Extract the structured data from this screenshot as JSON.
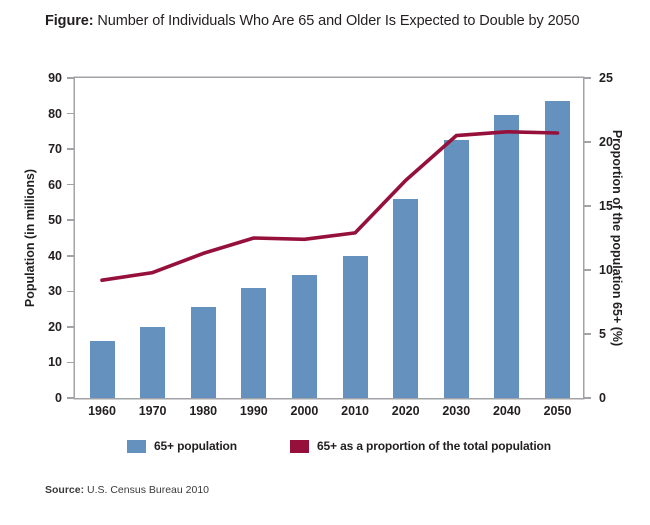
{
  "title": {
    "prefix": "Figure:",
    "text": "Number of Individuals Who Are 65 and Older Is Expected to Double by 2050"
  },
  "source": {
    "prefix": "Source:",
    "text": "U.S. Census Bureau 2010"
  },
  "colors": {
    "bar": "#6591bf",
    "line": "#96103c",
    "axis": "#a1a3a6",
    "text": "#231f20"
  },
  "chart_data": {
    "type": "bar+line",
    "title": "Number of Individuals Who Are 65 and Older Is Expected to Double by 2050",
    "categories": [
      "1960",
      "1970",
      "1980",
      "1990",
      "2000",
      "2010",
      "2020",
      "2030",
      "2040",
      "2050"
    ],
    "series": [
      {
        "name": "65+ population",
        "type": "bar",
        "axis": "left",
        "color": "#6591bf",
        "values": [
          16,
          20,
          25.5,
          31,
          34.5,
          40,
          56,
          72.5,
          79.5,
          83.5
        ]
      },
      {
        "name": "65+ as a proportion of the total population",
        "type": "line",
        "axis": "right",
        "color": "#96103c",
        "values": [
          9.2,
          9.8,
          11.3,
          12.5,
          12.4,
          12.9,
          17,
          20.5,
          20.8,
          20.7
        ]
      }
    ],
    "left_axis": {
      "label": "Population (in millions)",
      "min": 0,
      "max": 90,
      "ticks": [
        0,
        10,
        20,
        30,
        40,
        50,
        60,
        70,
        80,
        90
      ]
    },
    "right_axis": {
      "label": "Proportion of the population 65+ (%)",
      "min": 0,
      "max": 25,
      "ticks": [
        0,
        5,
        10,
        15,
        20,
        25
      ]
    },
    "legend": [
      {
        "label": "65+ population",
        "color": "#6591bf"
      },
      {
        "label": "65+ as a proportion of the total population",
        "color": "#96103c"
      }
    ],
    "grid": false,
    "legend_position": "bottom"
  }
}
